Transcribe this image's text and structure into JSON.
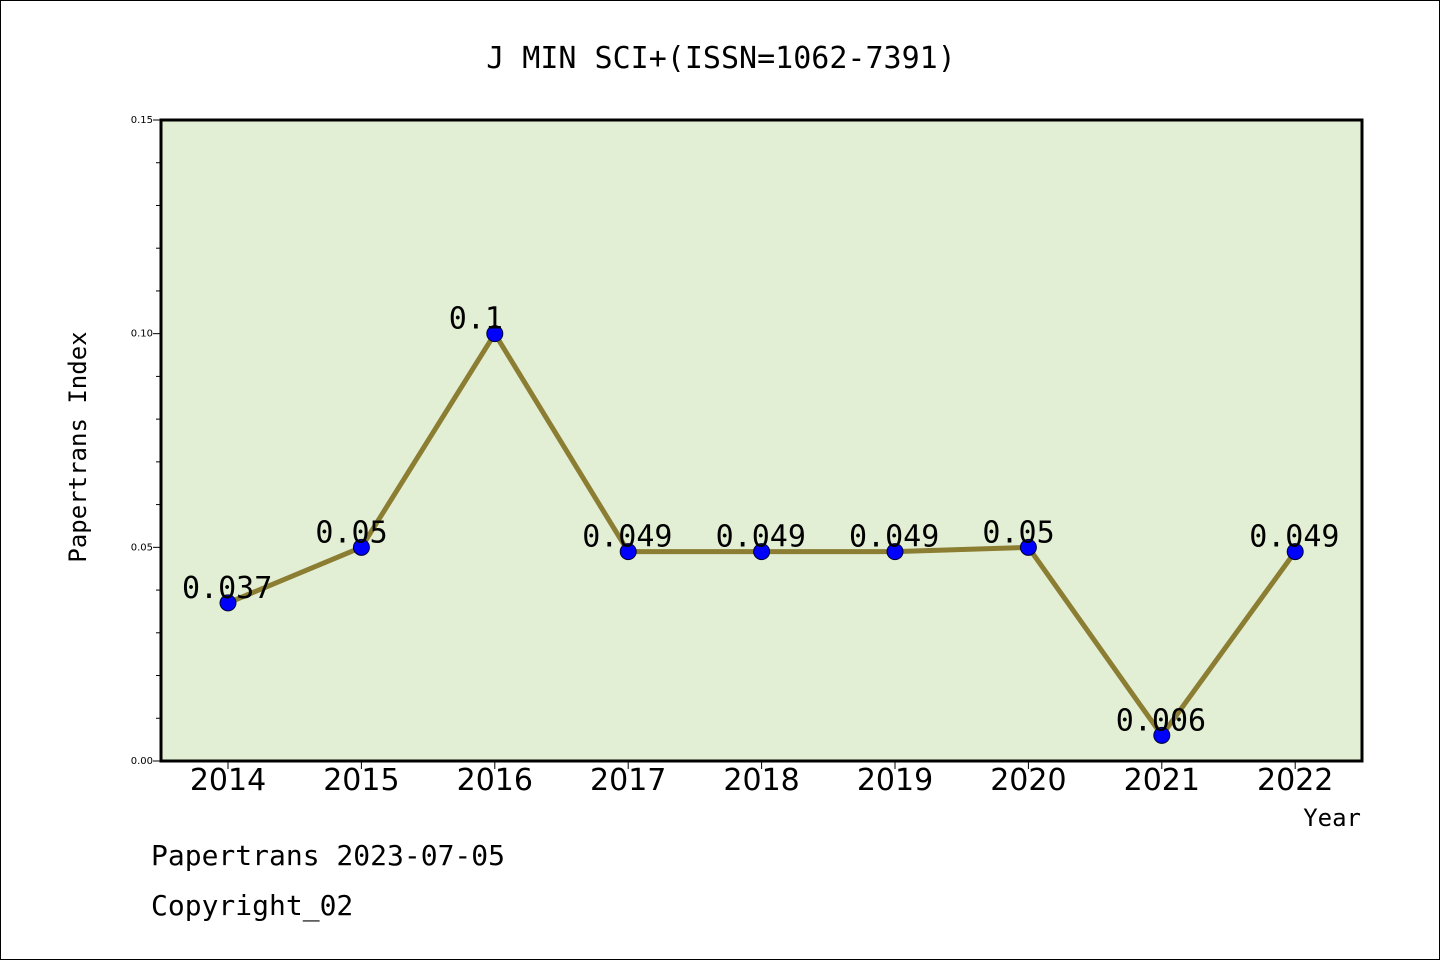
{
  "chart_data": {
    "type": "line",
    "title": "J MIN SCI+(ISSN=1062-7391)",
    "xlabel": "Year",
    "ylabel": "Papertrans Index",
    "categories": [
      "2014",
      "2015",
      "2016",
      "2017",
      "2018",
      "2019",
      "2020",
      "2021",
      "2022"
    ],
    "values": [
      0.037,
      0.05,
      0.1,
      0.049,
      0.049,
      0.049,
      0.05,
      0.006,
      0.049
    ],
    "data_labels": [
      "0.037",
      "0.05",
      "0.1",
      "0.049",
      "0.049",
      "0.049",
      "0.05",
      "0.006",
      "0.049"
    ],
    "ylim": [
      0,
      0.15
    ],
    "yticks": [
      "0.00",
      "0.05",
      "0.10",
      "0.15"
    ],
    "grid": false,
    "colors": {
      "plot_background": "#e2efd4",
      "line": "#8b7d32",
      "marker": "#0000ff"
    }
  },
  "footer": {
    "line1": "Papertrans 2023-07-05",
    "line2": "Copyright_02"
  }
}
